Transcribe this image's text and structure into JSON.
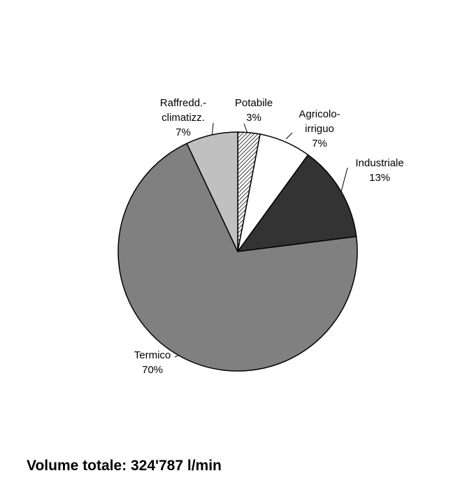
{
  "chart_data": {
    "type": "pie",
    "categories": [
      "Potabile",
      "Agricolo-irriguo",
      "Industriale",
      "Termico",
      "Raffredd.-climatizz."
    ],
    "values": [
      3,
      7,
      13,
      70,
      7
    ],
    "value_labels": [
      "3%",
      "7%",
      "13%",
      "70%",
      "7%"
    ],
    "colors": [
      "url(#hatch)",
      "#ffffff",
      "#333333",
      "#808080",
      "#c0c0c0"
    ],
    "caption": "Volume totale: 324'787 l/min"
  }
}
